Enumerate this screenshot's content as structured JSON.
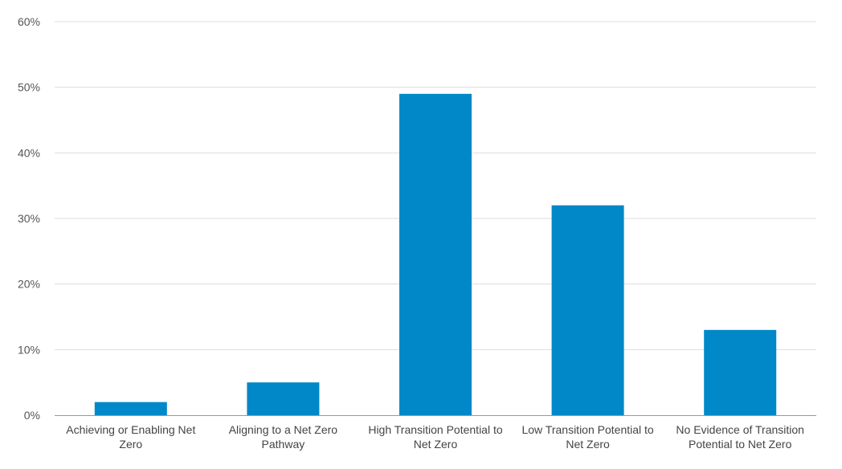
{
  "chart_data": {
    "type": "bar",
    "title": "",
    "xlabel": "",
    "ylabel": "",
    "categories": [
      [
        "Achieving or Enabling Net",
        "Zero"
      ],
      [
        "Aligning to a Net Zero",
        "Pathway"
      ],
      [
        "High Transition Potential to",
        "Net Zero"
      ],
      [
        "Low Transition Potential to",
        "Net Zero"
      ],
      [
        "No Evidence of Transition",
        "Potential to Net Zero"
      ]
    ],
    "values": [
      2,
      5,
      49,
      32,
      13
    ],
    "ylim": [
      0,
      60
    ],
    "yticks": [
      0,
      10,
      20,
      30,
      40,
      50,
      60
    ],
    "ytick_labels": [
      "0%",
      "10%",
      "20%",
      "30%",
      "40%",
      "50%",
      "60%"
    ],
    "grid": true,
    "legend": "none",
    "colors": {
      "bar": "#0088C8",
      "grid": "#dddddd",
      "axis": "#999999"
    }
  }
}
